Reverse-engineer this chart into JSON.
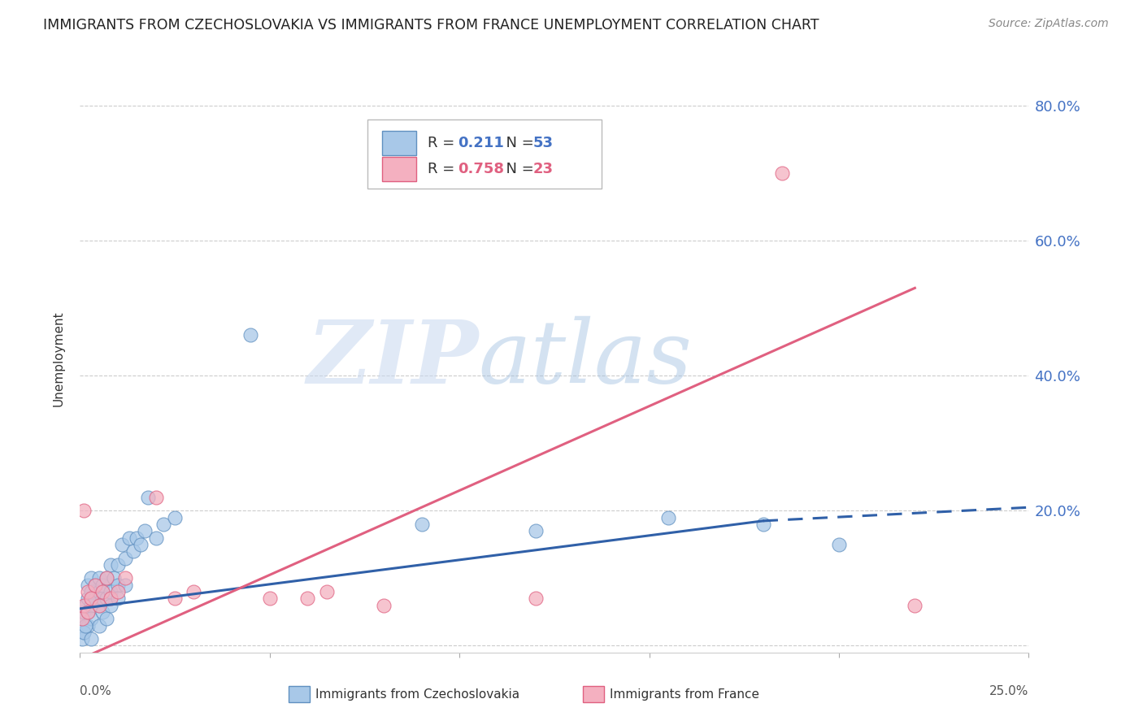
{
  "title": "IMMIGRANTS FROM CZECHOSLOVAKIA VS IMMIGRANTS FROM FRANCE UNEMPLOYMENT CORRELATION CHART",
  "source": "Source: ZipAtlas.com",
  "ylabel": "Unemployment",
  "yticks": [
    0.0,
    0.2,
    0.4,
    0.6,
    0.8
  ],
  "ytick_labels": [
    "",
    "20.0%",
    "40.0%",
    "60.0%",
    "80.0%"
  ],
  "xlim": [
    0.0,
    0.25
  ],
  "ylim": [
    -0.01,
    0.86
  ],
  "watermark_zip": "ZIP",
  "watermark_atlas": "atlas",
  "series1_label": "Immigrants from Czechoslovakia",
  "series2_label": "Immigrants from France",
  "series1_color": "#a8c8e8",
  "series2_color": "#f4b0c0",
  "series1_edge_color": "#6090c0",
  "series2_edge_color": "#e06080",
  "series1_line_color": "#3060a8",
  "series2_line_color": "#e06080",
  "background_color": "#ffffff",
  "grid_color": "#cccccc",
  "title_fontsize": 12.5,
  "tick_label_color": "#4472c4",
  "title_color": "#222222",
  "legend_r1_val": "0.211",
  "legend_r1_n": "53",
  "legend_r2_val": "0.758",
  "legend_r2_n": "23",
  "czecho_x": [
    0.0005,
    0.001,
    0.0015,
    0.002,
    0.002,
    0.002,
    0.003,
    0.003,
    0.003,
    0.004,
    0.004,
    0.005,
    0.005,
    0.005,
    0.006,
    0.006,
    0.007,
    0.007,
    0.008,
    0.008,
    0.009,
    0.01,
    0.01,
    0.011,
    0.012,
    0.013,
    0.014,
    0.015,
    0.016,
    0.017,
    0.018,
    0.02,
    0.022,
    0.025,
    0.001,
    0.002,
    0.003,
    0.005,
    0.006,
    0.007,
    0.008,
    0.01,
    0.012,
    0.0005,
    0.001,
    0.0015,
    0.003,
    0.045,
    0.09,
    0.12,
    0.155,
    0.18,
    0.2
  ],
  "czecho_y": [
    0.04,
    0.05,
    0.06,
    0.05,
    0.07,
    0.09,
    0.06,
    0.08,
    0.1,
    0.07,
    0.09,
    0.06,
    0.08,
    0.1,
    0.07,
    0.09,
    0.07,
    0.1,
    0.08,
    0.12,
    0.1,
    0.09,
    0.12,
    0.15,
    0.13,
    0.16,
    0.14,
    0.16,
    0.15,
    0.17,
    0.22,
    0.16,
    0.18,
    0.19,
    0.02,
    0.03,
    0.04,
    0.03,
    0.05,
    0.04,
    0.06,
    0.07,
    0.09,
    0.01,
    0.02,
    0.03,
    0.01,
    0.46,
    0.18,
    0.17,
    0.19,
    0.18,
    0.15
  ],
  "france_x": [
    0.0005,
    0.001,
    0.001,
    0.002,
    0.002,
    0.003,
    0.004,
    0.005,
    0.006,
    0.007,
    0.008,
    0.01,
    0.012,
    0.02,
    0.025,
    0.03,
    0.05,
    0.06,
    0.065,
    0.08,
    0.12,
    0.185,
    0.22
  ],
  "france_y": [
    0.04,
    0.06,
    0.2,
    0.05,
    0.08,
    0.07,
    0.09,
    0.06,
    0.08,
    0.1,
    0.07,
    0.08,
    0.1,
    0.22,
    0.07,
    0.08,
    0.07,
    0.07,
    0.08,
    0.06,
    0.07,
    0.7,
    0.06
  ],
  "line1_x0": 0.0,
  "line1_y0": 0.055,
  "line1_x1": 0.18,
  "line1_y1": 0.185,
  "line1_dash_x1": 0.25,
  "line1_dash_y1": 0.205,
  "line2_x0": 0.0,
  "line2_y0": -0.02,
  "line2_x1": 0.22,
  "line2_y1": 0.53
}
